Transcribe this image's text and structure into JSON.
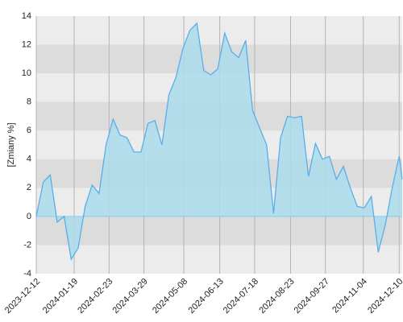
{
  "chart_data": {
    "type": "area",
    "y_label": "[Zmiany %]",
    "x": [
      "2023-12-12",
      "2023-12-19",
      "2023-12-26",
      "2024-01-02",
      "2024-01-09",
      "2024-01-16",
      "2024-01-23",
      "2024-01-30",
      "2024-02-06",
      "2024-02-13",
      "2024-02-20",
      "2024-02-27",
      "2024-03-05",
      "2024-03-12",
      "2024-03-19",
      "2024-03-26",
      "2024-04-02",
      "2024-04-09",
      "2024-04-16",
      "2024-04-23",
      "2024-04-30",
      "2024-05-07",
      "2024-05-14",
      "2024-05-21",
      "2024-05-28",
      "2024-06-04",
      "2024-06-11",
      "2024-06-18",
      "2024-06-25",
      "2024-07-02",
      "2024-07-09",
      "2024-07-16",
      "2024-07-23",
      "2024-07-30",
      "2024-08-06",
      "2024-08-13",
      "2024-08-20",
      "2024-08-27",
      "2024-09-03",
      "2024-09-10",
      "2024-09-17",
      "2024-09-24",
      "2024-10-01",
      "2024-10-08",
      "2024-10-15",
      "2024-10-22",
      "2024-10-29",
      "2024-11-05",
      "2024-11-12",
      "2024-11-19",
      "2024-11-26",
      "2024-12-03",
      "2024-12-10",
      "2024-12-13"
    ],
    "values": [
      0,
      2.4,
      2.9,
      -0.4,
      0.0,
      -3.0,
      -2.2,
      0.7,
      2.2,
      1.6,
      5.0,
      6.8,
      5.7,
      5.5,
      4.5,
      4.5,
      6.5,
      6.7,
      5.0,
      8.5,
      9.7,
      11.7,
      13.0,
      13.5,
      10.2,
      9.9,
      10.3,
      12.8,
      11.5,
      11.1,
      12.3,
      7.4,
      6.2,
      5.0,
      0.2,
      5.5,
      7.0,
      6.9,
      7.0,
      2.8,
      5.1,
      4.0,
      4.2,
      2.6,
      3.5,
      2.0,
      0.7,
      0.6,
      1.4,
      -2.5,
      -0.6,
      2.0,
      4.2,
      2.6
    ],
    "color": "#5aaee8",
    "fill": "#acdcec",
    "xlim": [
      "2023-12-12",
      "2024-12-13"
    ],
    "xticks": [
      "2023-12-12",
      "2024-01-19",
      "2024-02-23",
      "2024-03-29",
      "2024-05-08",
      "2024-06-13",
      "2024-07-18",
      "2024-08-23",
      "2024-09-27",
      "2024-11-04",
      "2024-12-10"
    ],
    "ylim": [
      -4,
      14
    ],
    "yticks": [
      -4,
      -2,
      0,
      2,
      4,
      6,
      8,
      10,
      12,
      14
    ],
    "grid": true
  }
}
